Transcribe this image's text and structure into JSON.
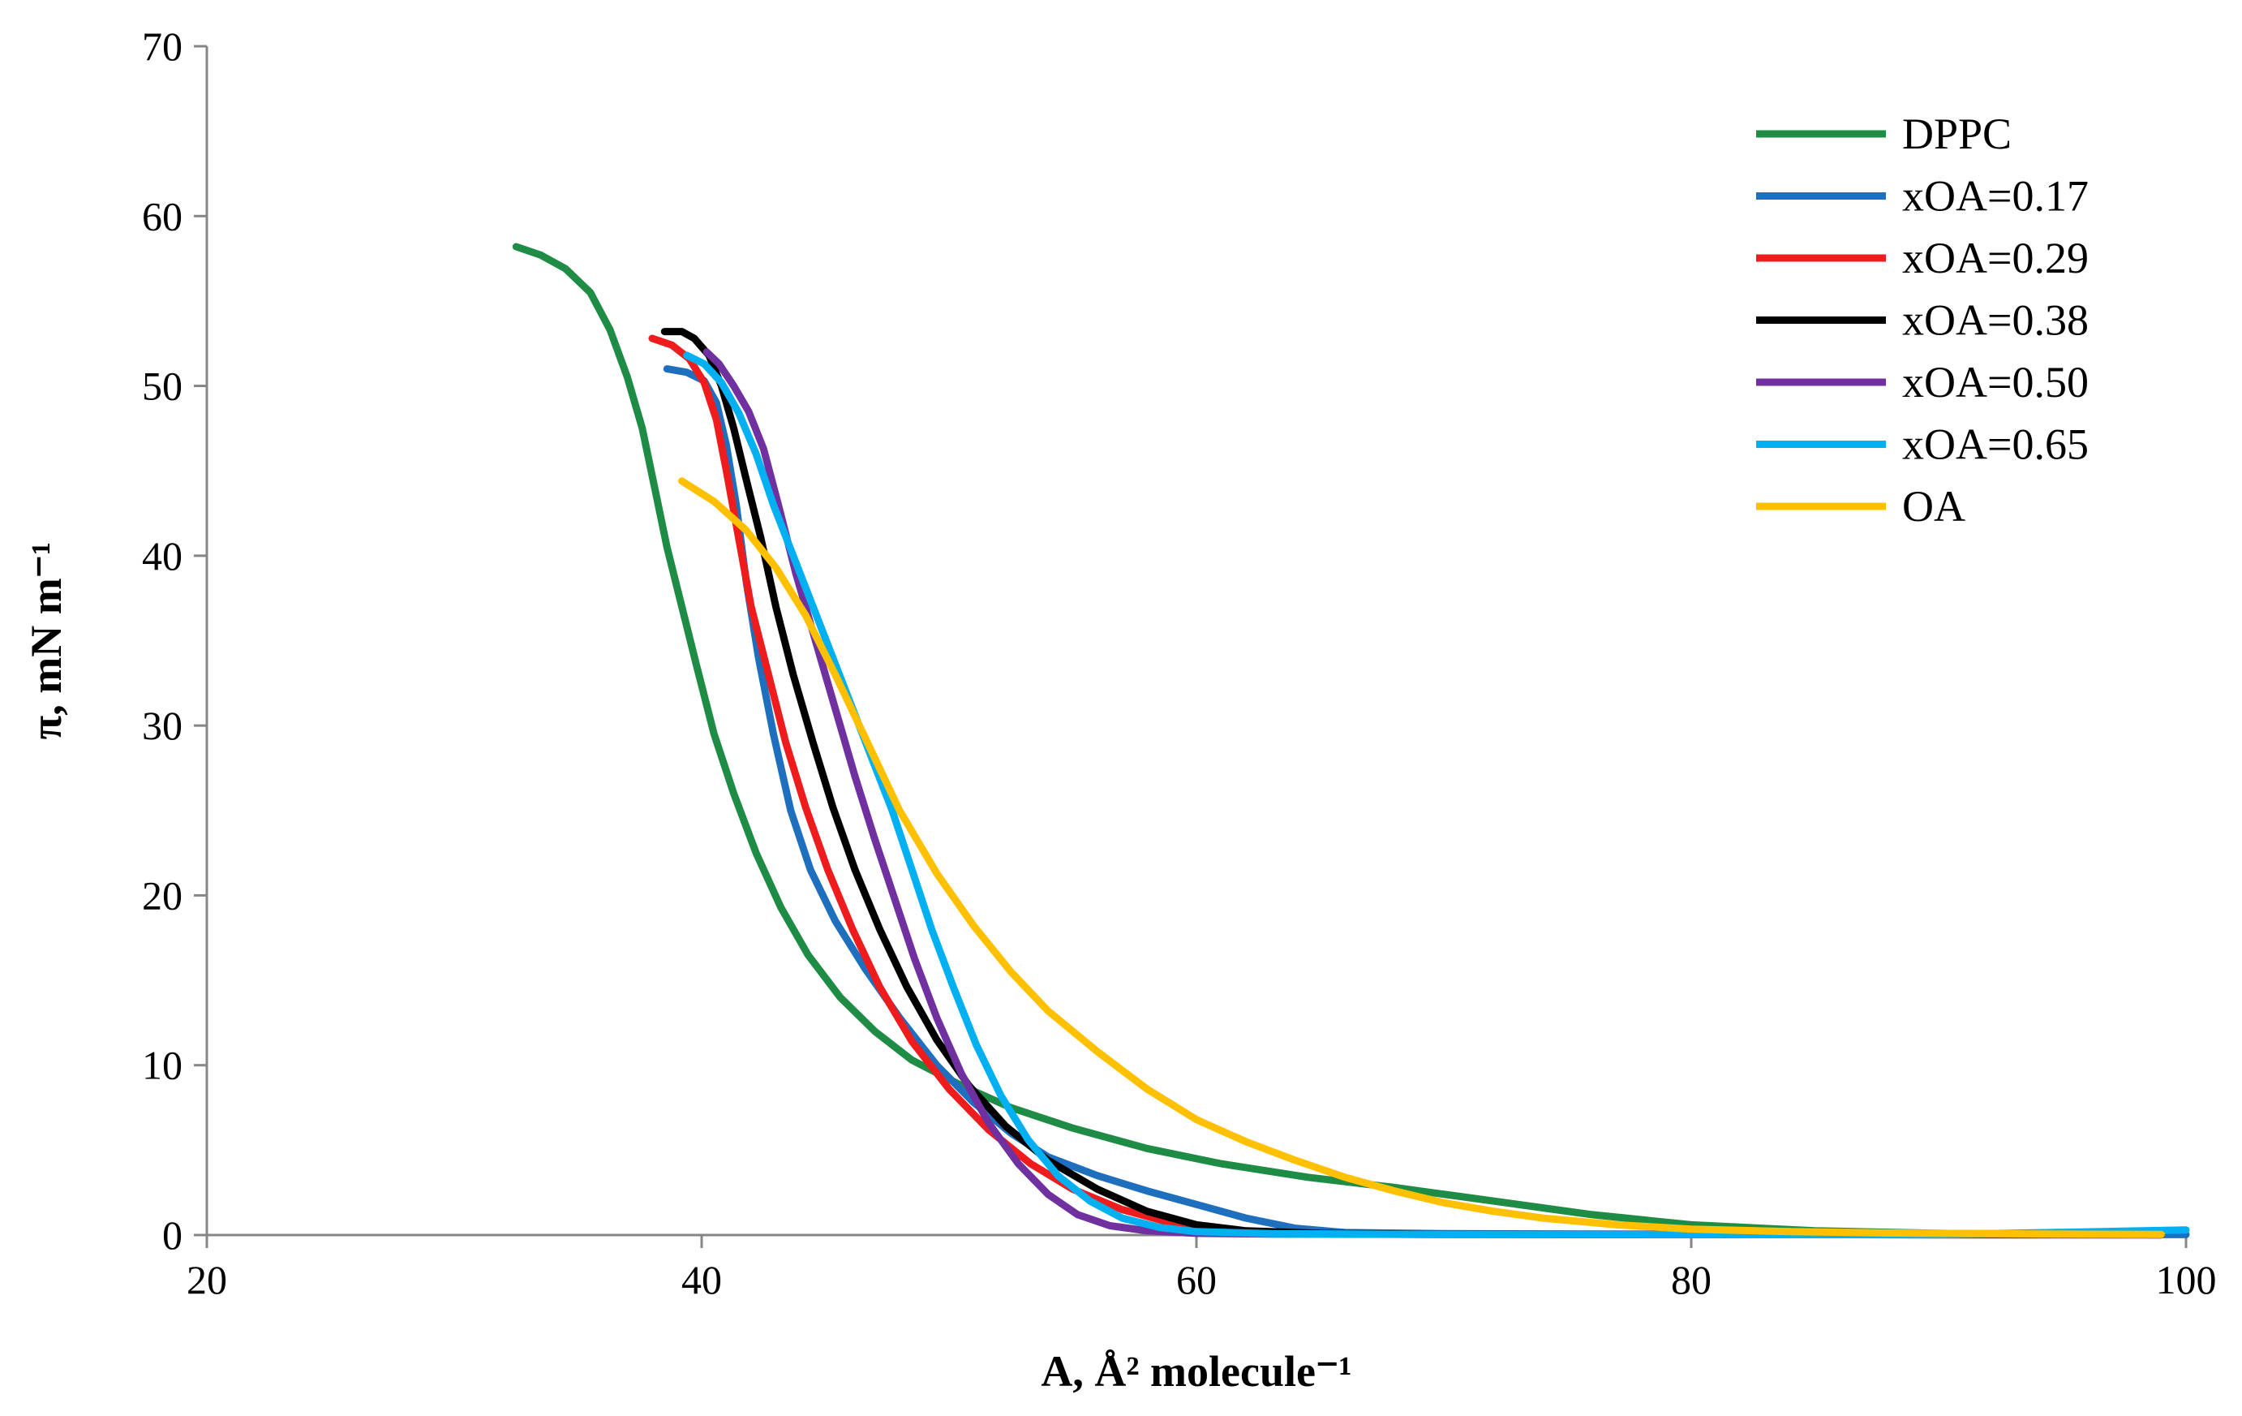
{
  "chart_data": {
    "type": "line",
    "title": "",
    "xlabel": "A, Å² molecule⁻¹",
    "ylabel": "π, mN m⁻¹",
    "xlim": [
      20,
      100
    ],
    "ylim": [
      0,
      70
    ],
    "xticks": [
      "20",
      "40",
      "60",
      "80",
      "100"
    ],
    "yticks": [
      "0",
      "10",
      "20",
      "30",
      "40",
      "50",
      "60",
      "70"
    ],
    "grid": false,
    "legend_position": "top-right",
    "series": [
      {
        "name": "DPPC",
        "color": "#1e8c45",
        "points": [
          [
            32.5,
            58.2
          ],
          [
            33.5,
            57.7
          ],
          [
            34.5,
            56.9
          ],
          [
            35.5,
            55.5
          ],
          [
            36.3,
            53.3
          ],
          [
            37,
            50.5
          ],
          [
            37.6,
            47.5
          ],
          [
            38.1,
            44
          ],
          [
            38.6,
            40.5
          ],
          [
            39.2,
            37
          ],
          [
            39.8,
            33.5
          ],
          [
            40.5,
            29.5
          ],
          [
            41.3,
            26
          ],
          [
            42.2,
            22.5
          ],
          [
            43.2,
            19.3
          ],
          [
            44.3,
            16.5
          ],
          [
            45.6,
            14
          ],
          [
            47,
            12
          ],
          [
            48.5,
            10.3
          ],
          [
            50.5,
            8.8
          ],
          [
            52.5,
            7.5
          ],
          [
            55,
            6.3
          ],
          [
            58,
            5.1
          ],
          [
            61,
            4.2
          ],
          [
            64.5,
            3.4
          ],
          [
            68,
            2.8
          ],
          [
            72,
            2.0
          ],
          [
            76,
            1.2
          ],
          [
            80,
            0.6
          ],
          [
            85,
            0.25
          ],
          [
            90,
            0.1
          ],
          [
            95,
            0.05
          ],
          [
            99,
            0.02
          ]
        ]
      },
      {
        "name": "xOA=0.17",
        "color": "#1f6fbf",
        "points": [
          [
            38.6,
            51.0
          ],
          [
            39.4,
            50.8
          ],
          [
            40.1,
            50.3
          ],
          [
            40.6,
            49
          ],
          [
            41,
            46.5
          ],
          [
            41.4,
            43
          ],
          [
            41.8,
            38.5
          ],
          [
            42.3,
            34
          ],
          [
            42.9,
            29.5
          ],
          [
            43.6,
            25
          ],
          [
            44.4,
            21.5
          ],
          [
            45.4,
            18.5
          ],
          [
            46.6,
            15.7
          ],
          [
            48,
            12.8
          ],
          [
            49.5,
            10
          ],
          [
            51,
            7.8
          ],
          [
            52.5,
            6.0
          ],
          [
            54,
            4.6
          ],
          [
            56,
            3.5
          ],
          [
            58,
            2.6
          ],
          [
            60,
            1.8
          ],
          [
            62,
            1.0
          ],
          [
            64,
            0.4
          ],
          [
            66,
            0.15
          ],
          [
            70,
            0.08
          ],
          [
            80,
            0.05
          ],
          [
            90,
            0.04
          ],
          [
            100,
            0.03
          ]
        ]
      },
      {
        "name": "xOA=0.29",
        "color": "#ee1c1c",
        "points": [
          [
            38,
            52.8
          ],
          [
            38.8,
            52.4
          ],
          [
            39.5,
            51.6
          ],
          [
            40.1,
            50.2
          ],
          [
            40.6,
            48
          ],
          [
            41,
            45
          ],
          [
            41.5,
            41
          ],
          [
            42,
            37
          ],
          [
            42.7,
            33
          ],
          [
            43.4,
            29
          ],
          [
            44.2,
            25.2
          ],
          [
            45.1,
            21.5
          ],
          [
            46.1,
            18
          ],
          [
            47.2,
            14.6
          ],
          [
            48.5,
            11.4
          ],
          [
            50,
            8.6
          ],
          [
            51.6,
            6.2
          ],
          [
            53.3,
            4.2
          ],
          [
            55,
            2.7
          ],
          [
            57,
            1.5
          ],
          [
            59,
            0.7
          ],
          [
            61,
            0.3
          ],
          [
            63,
            0.12
          ],
          [
            66,
            0.06
          ],
          [
            70,
            0.04
          ],
          [
            80,
            0.03
          ],
          [
            90,
            0.02
          ],
          [
            99,
            0.02
          ]
        ]
      },
      {
        "name": "xOA=0.38",
        "color": "#000000",
        "points": [
          [
            38.5,
            53.2
          ],
          [
            39.2,
            53.2
          ],
          [
            39.7,
            52.8
          ],
          [
            40.3,
            51.8
          ],
          [
            40.8,
            50
          ],
          [
            41.3,
            47.5
          ],
          [
            41.8,
            44.5
          ],
          [
            42.4,
            41
          ],
          [
            43,
            37
          ],
          [
            43.7,
            33
          ],
          [
            44.5,
            29
          ],
          [
            45.3,
            25.2
          ],
          [
            46.2,
            21.5
          ],
          [
            47.2,
            18
          ],
          [
            48.3,
            14.6
          ],
          [
            49.5,
            11.5
          ],
          [
            50.8,
            8.8
          ],
          [
            52.3,
            6.4
          ],
          [
            54,
            4.4
          ],
          [
            56,
            2.7
          ],
          [
            58,
            1.4
          ],
          [
            60,
            0.6
          ],
          [
            62,
            0.25
          ],
          [
            65,
            0.1
          ],
          [
            70,
            0.05
          ],
          [
            80,
            0.03
          ],
          [
            90,
            0.02
          ],
          [
            99,
            0.02
          ]
        ]
      },
      {
        "name": "xOA=0.50",
        "color": "#7030a0",
        "points": [
          [
            40.2,
            52.0
          ],
          [
            40.7,
            51.3
          ],
          [
            41.3,
            50
          ],
          [
            41.9,
            48.5
          ],
          [
            42.5,
            46.3
          ],
          [
            43.1,
            43
          ],
          [
            43.8,
            39
          ],
          [
            44.6,
            35
          ],
          [
            45.4,
            31
          ],
          [
            46.2,
            27
          ],
          [
            47,
            23.3
          ],
          [
            47.8,
            19.8
          ],
          [
            48.6,
            16.3
          ],
          [
            49.5,
            12.8
          ],
          [
            50.5,
            9.5
          ],
          [
            51.6,
            6.6
          ],
          [
            52.8,
            4.2
          ],
          [
            54,
            2.4
          ],
          [
            55.2,
            1.2
          ],
          [
            56.5,
            0.55
          ],
          [
            58,
            0.25
          ],
          [
            60,
            0.1
          ],
          [
            63,
            0.06
          ],
          [
            70,
            0.04
          ],
          [
            80,
            0.03
          ],
          [
            99,
            0.02
          ]
        ]
      },
      {
        "name": "xOA=0.65",
        "color": "#00b0f0",
        "points": [
          [
            39.4,
            51.8
          ],
          [
            40.1,
            51.3
          ],
          [
            40.8,
            50.2
          ],
          [
            41.5,
            48.4
          ],
          [
            42.2,
            46
          ],
          [
            42.9,
            43
          ],
          [
            43.7,
            40
          ],
          [
            44.5,
            37
          ],
          [
            45.3,
            34
          ],
          [
            46.1,
            31
          ],
          [
            46.9,
            28
          ],
          [
            47.7,
            25
          ],
          [
            48.5,
            21.5
          ],
          [
            49.3,
            18
          ],
          [
            50.2,
            14.5
          ],
          [
            51.1,
            11.2
          ],
          [
            52.1,
            8.2
          ],
          [
            53.2,
            5.6
          ],
          [
            54.4,
            3.5
          ],
          [
            55.7,
            2.0
          ],
          [
            57,
            1.0
          ],
          [
            58.5,
            0.45
          ],
          [
            60,
            0.2
          ],
          [
            63,
            0.08
          ],
          [
            70,
            0.04
          ],
          [
            80,
            0.03
          ],
          [
            90,
            0.02
          ],
          [
            100,
            0.3
          ]
        ]
      },
      {
        "name": "OA",
        "color": "#ffc000",
        "points": [
          [
            39.2,
            44.4
          ],
          [
            40.5,
            43.2
          ],
          [
            41.8,
            41.5
          ],
          [
            43,
            39.3
          ],
          [
            44.2,
            36.5
          ],
          [
            45.4,
            33
          ],
          [
            46.7,
            29
          ],
          [
            48,
            25
          ],
          [
            49.5,
            21.3
          ],
          [
            51,
            18.2
          ],
          [
            52.5,
            15.5
          ],
          [
            54,
            13.2
          ],
          [
            56,
            10.8
          ],
          [
            58,
            8.6
          ],
          [
            60,
            6.8
          ],
          [
            62,
            5.5
          ],
          [
            64,
            4.4
          ],
          [
            66,
            3.4
          ],
          [
            68,
            2.6
          ],
          [
            70,
            1.9
          ],
          [
            72,
            1.4
          ],
          [
            74,
            1.0
          ],
          [
            77,
            0.6
          ],
          [
            80,
            0.35
          ],
          [
            84,
            0.2
          ],
          [
            88,
            0.12
          ],
          [
            92,
            0.08
          ],
          [
            96,
            0.05
          ],
          [
            99,
            0.04
          ]
        ]
      }
    ]
  }
}
